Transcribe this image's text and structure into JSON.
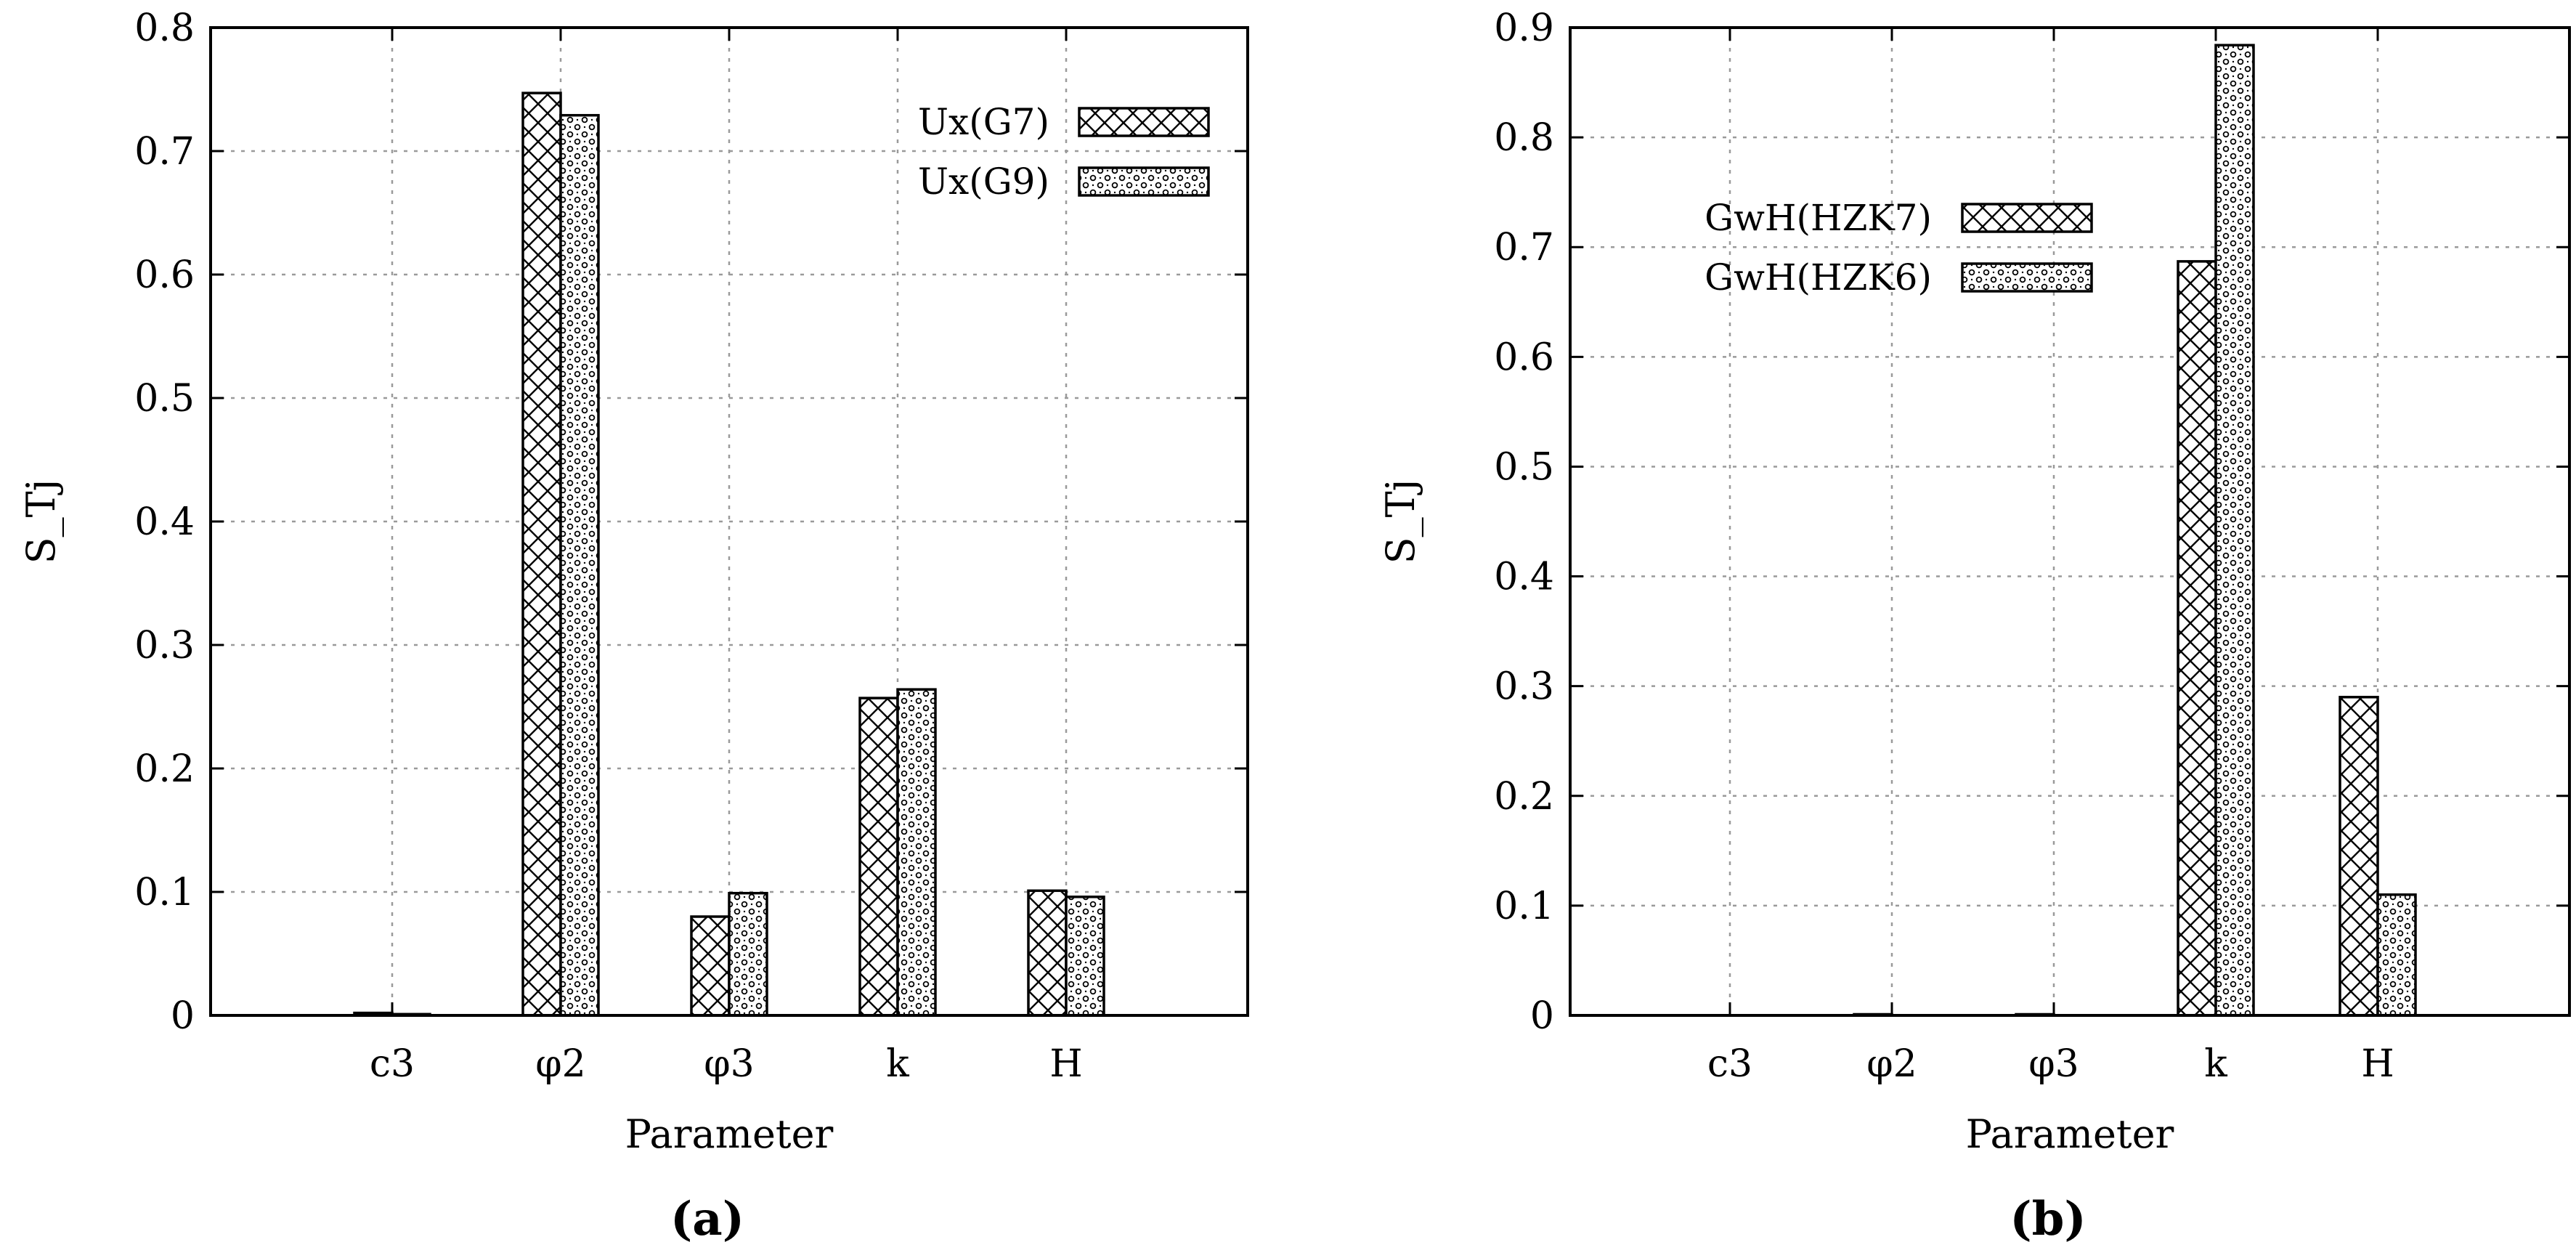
{
  "chart_data": [
    {
      "type": "bar",
      "caption": "(a)",
      "xlabel": "Parameter",
      "ylabel": "S_Tj",
      "ylim": [
        0,
        0.8
      ],
      "yticks": [
        0,
        0.1,
        0.2,
        0.3,
        0.4,
        0.5,
        0.6,
        0.7,
        0.8
      ],
      "ytick_labels": [
        "0",
        "0.1",
        "0.2",
        "0.3",
        "0.4",
        "0.5",
        "0.6",
        "0.7",
        "0.8"
      ],
      "grid": true,
      "legend_position": "top-right",
      "categories": [
        "c3",
        "φ2",
        "φ3",
        "k",
        "H"
      ],
      "series": [
        {
          "name": "Ux(G7)",
          "pattern": "crosshatch",
          "values": [
            0.002,
            0.747,
            0.08,
            0.257,
            0.101
          ]
        },
        {
          "name": "Ux(G9)",
          "pattern": "dots",
          "values": [
            0.001,
            0.729,
            0.099,
            0.264,
            0.096
          ]
        }
      ]
    },
    {
      "type": "bar",
      "caption": "(b)",
      "xlabel": "Parameter",
      "ylabel": "S_Tj",
      "ylim": [
        0,
        0.9
      ],
      "yticks": [
        0,
        0.1,
        0.2,
        0.3,
        0.4,
        0.5,
        0.6,
        0.7,
        0.8,
        0.9
      ],
      "ytick_labels": [
        "0",
        "0.1",
        "0.2",
        "0.3",
        "0.4",
        "0.5",
        "0.6",
        "0.7",
        "0.8",
        "0.9"
      ],
      "grid": true,
      "legend_position": "top-left",
      "categories": [
        "c3",
        "φ2",
        "φ3",
        "k",
        "H"
      ],
      "series": [
        {
          "name": "GwH(HZK7)",
          "pattern": "crosshatch",
          "values": [
            0.0,
            0.001,
            0.001,
            0.687,
            0.29
          ]
        },
        {
          "name": "GwH(HZK6)",
          "pattern": "dots",
          "values": [
            0.0,
            0.0,
            0.0,
            0.884,
            0.11
          ]
        }
      ]
    }
  ]
}
